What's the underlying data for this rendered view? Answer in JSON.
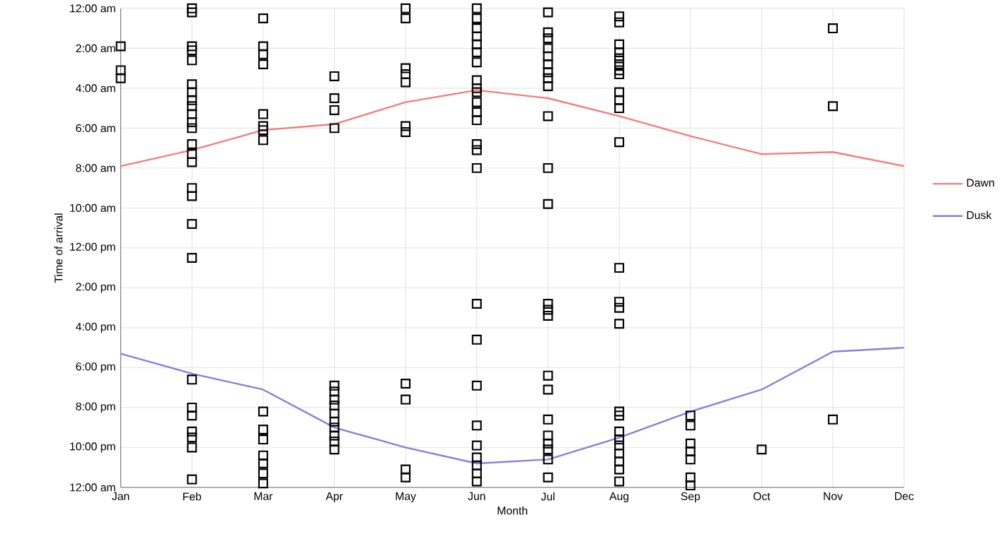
{
  "chart_data": {
    "type": "line",
    "xlabel": "Month",
    "ylabel": "Time of arrival",
    "categories": [
      "Jan",
      "Feb",
      "Mar",
      "Apr",
      "May",
      "Jun",
      "Jul",
      "Aug",
      "Sep",
      "Oct",
      "Nov",
      "Dec"
    ],
    "ylim": [
      24,
      0
    ],
    "yticks": [
      {
        "value": 0,
        "label": "12:00 am"
      },
      {
        "value": 2,
        "label": "2:00 am"
      },
      {
        "value": 4,
        "label": "4:00 am"
      },
      {
        "value": 6,
        "label": "6:00 am"
      },
      {
        "value": 8,
        "label": "8:00 am"
      },
      {
        "value": 10,
        "label": "10:00 am"
      },
      {
        "value": 12,
        "label": "12:00 pm"
      },
      {
        "value": 14,
        "label": "2:00 pm"
      },
      {
        "value": 16,
        "label": "4:00 pm"
      },
      {
        "value": 18,
        "label": "6:00 pm"
      },
      {
        "value": 20,
        "label": "8:00 pm"
      },
      {
        "value": 22,
        "label": "10:00 pm"
      },
      {
        "value": 24,
        "label": "12:00 am"
      }
    ],
    "grid": true,
    "legend": "right",
    "series": [
      {
        "name": "Dawn",
        "color": "#f47c7c",
        "marker": "none",
        "values": [
          7.9,
          7.1,
          6.1,
          5.8,
          4.7,
          4.1,
          4.5,
          5.4,
          6.4,
          7.3,
          7.2,
          7.9
        ]
      },
      {
        "name": "Dusk",
        "color": "#8a7ddc",
        "marker": "none",
        "values": [
          17.3,
          18.3,
          19.1,
          21.0,
          22.0,
          22.8,
          22.6,
          21.5,
          20.2,
          19.1,
          17.2,
          17.0
        ]
      },
      {
        "type": "scatter",
        "color": "#000000",
        "marker": "square",
        "x": [
          "Jan",
          "Jan",
          "Jan",
          "Feb",
          "Feb",
          "Feb",
          "Feb",
          "Feb",
          "Feb",
          "Feb",
          "Feb",
          "Feb",
          "Feb",
          "Feb",
          "Feb",
          "Feb",
          "Feb",
          "Feb",
          "Feb",
          "Feb",
          "Feb",
          "Feb",
          "Feb",
          "Feb",
          "Feb",
          "Feb",
          "Feb",
          "Feb",
          "Feb",
          "Mar",
          "Mar",
          "Mar",
          "Mar",
          "Mar",
          "Mar",
          "Mar",
          "Mar",
          "Mar",
          "Mar",
          "Mar",
          "Mar",
          "Mar",
          "Mar",
          "Mar",
          "Apr",
          "Apr",
          "Apr",
          "Apr",
          "Apr",
          "Apr",
          "Apr",
          "Apr",
          "Apr",
          "Apr",
          "Apr",
          "Apr",
          "Apr",
          "Apr",
          "May",
          "May",
          "May",
          "May",
          "May",
          "May",
          "May",
          "May",
          "May",
          "May",
          "May",
          "Jun",
          "Jun",
          "Jun",
          "Jun",
          "Jun",
          "Jun",
          "Jun",
          "Jun",
          "Jun",
          "Jun",
          "Jun",
          "Jun",
          "Jun",
          "Jun",
          "Jun",
          "Jun",
          "Jun",
          "Jun",
          "Jun",
          "Jun",
          "Jun",
          "Jun",
          "Jun",
          "Jun",
          "Jun",
          "Jul",
          "Jul",
          "Jul",
          "Jul",
          "Jul",
          "Jul",
          "Jul",
          "Jul",
          "Jul",
          "Jul",
          "Jul",
          "Jul",
          "Jul",
          "Jul",
          "Jul",
          "Jul",
          "Jul",
          "Jul",
          "Jul",
          "Jul",
          "Jul",
          "Jul",
          "Jul",
          "Aug",
          "Aug",
          "Aug",
          "Aug",
          "Aug",
          "Aug",
          "Aug",
          "Aug",
          "Aug",
          "Aug",
          "Aug",
          "Aug",
          "Aug",
          "Aug",
          "Aug",
          "Aug",
          "Aug",
          "Aug",
          "Aug",
          "Aug",
          "Aug",
          "Aug",
          "Aug",
          "Aug",
          "Aug",
          "Sep",
          "Sep",
          "Sep",
          "Sep",
          "Sep",
          "Sep",
          "Sep",
          "Oct",
          "Nov",
          "Nov",
          "Nov"
        ],
        "values": [
          1.9,
          3.1,
          3.5,
          0.0,
          0.2,
          1.9,
          2.1,
          2.6,
          3.8,
          4.2,
          4.6,
          4.9,
          5.3,
          5.7,
          6.0,
          6.8,
          7.3,
          7.7,
          9.0,
          9.4,
          10.8,
          12.5,
          18.6,
          20.0,
          20.4,
          21.2,
          21.5,
          22.0,
          23.6,
          0.5,
          1.9,
          2.3,
          2.8,
          5.3,
          5.9,
          6.1,
          6.6,
          20.2,
          21.1,
          21.6,
          22.4,
          22.8,
          23.3,
          23.8,
          3.4,
          4.5,
          5.1,
          6.0,
          18.9,
          19.2,
          19.6,
          19.9,
          20.3,
          20.7,
          21.0,
          21.4,
          21.7,
          22.1,
          0.0,
          0.5,
          3.0,
          3.3,
          3.7,
          5.9,
          6.2,
          18.8,
          19.6,
          23.1,
          23.5,
          0.0,
          0.5,
          1.0,
          1.4,
          1.8,
          2.2,
          2.7,
          3.6,
          4.0,
          4.2,
          4.7,
          5.2,
          5.6,
          6.8,
          7.1,
          8.0,
          14.8,
          16.6,
          18.9,
          20.9,
          21.9,
          22.5,
          22.9,
          23.3,
          23.7,
          0.2,
          1.2,
          1.5,
          2.0,
          2.4,
          2.8,
          3.2,
          3.5,
          3.9,
          5.4,
          8.0,
          9.8,
          14.8,
          15.1,
          15.4,
          18.4,
          19.1,
          20.6,
          21.4,
          21.8,
          22.1,
          22.6,
          23.5,
          0.4,
          0.7,
          1.8,
          2.2,
          2.5,
          2.8,
          3.1,
          3.3,
          4.2,
          4.6,
          5.0,
          6.7,
          13.0,
          14.7,
          15.0,
          15.8,
          20.2,
          20.4,
          21.2,
          21.6,
          21.9,
          22.3,
          22.7,
          23.1,
          23.7,
          20.4,
          20.9,
          21.8,
          22.2,
          22.6,
          23.5,
          23.9,
          22.1,
          1.0,
          4.9,
          20.6
        ]
      }
    ]
  }
}
